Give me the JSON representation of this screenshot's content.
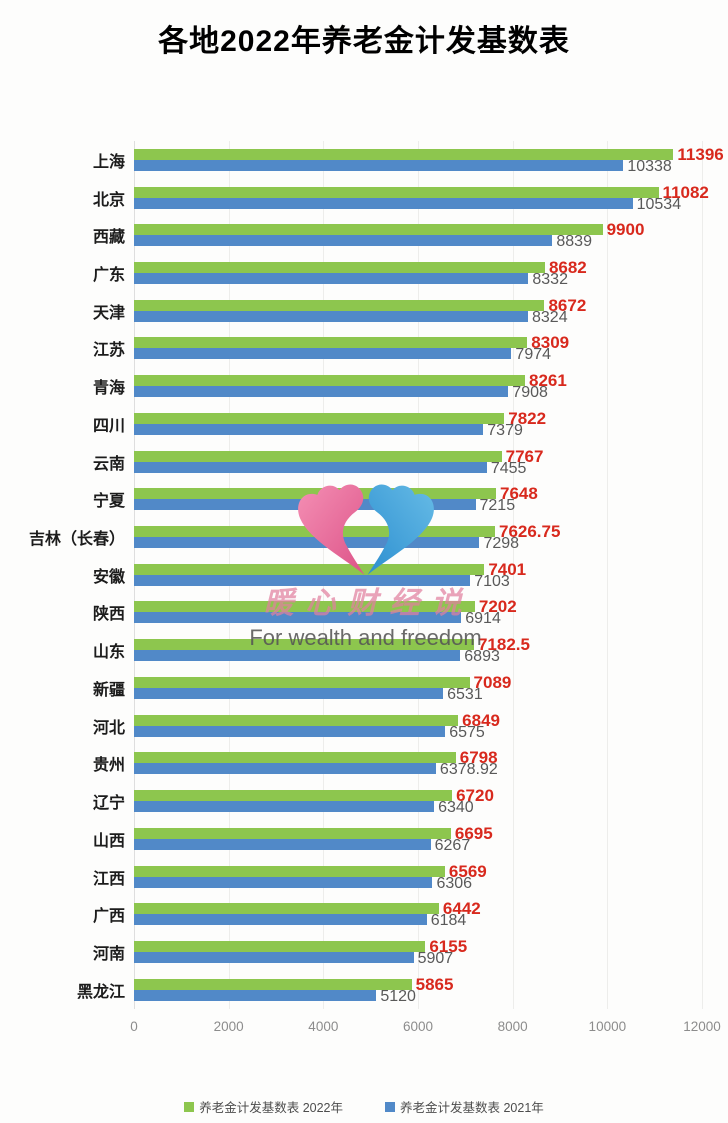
{
  "title": "各地2022年养老金计发基数表",
  "watermark": {
    "brand": "暖心财经说",
    "slogan": "For wealth and freedom",
    "logo_colors": {
      "left": "#E8669A",
      "right": "#3E9FD6"
    }
  },
  "colors": {
    "background": "#fdfdfc",
    "grid": "#ededeb",
    "axis_tick_text": "#8c8c8c",
    "category_text": "#1c1c1c",
    "value_2022_text": "#d8291d",
    "value_2021_text": "#595959"
  },
  "chart_data": {
    "type": "bar",
    "orientation": "horizontal",
    "title": "各地2022年养老金计发基数表",
    "xlabel": "",
    "ylabel": "",
    "xlim": [
      0,
      12000
    ],
    "x_ticks": [
      0,
      2000,
      4000,
      6000,
      8000,
      10000,
      12000
    ],
    "grid": true,
    "legend_position": "bottom",
    "categories": [
      "上海",
      "北京",
      "西藏",
      "广东",
      "天津",
      "江苏",
      "青海",
      "四川",
      "云南",
      "宁夏",
      "吉林（长春）",
      "安徽",
      "陕西",
      "山东",
      "新疆",
      "河北",
      "贵州",
      "辽宁",
      "山西",
      "江西",
      "广西",
      "河南",
      "黑龙江"
    ],
    "series": [
      {
        "name": "养老金计发基数表 2022年",
        "color": "#8dc64e",
        "label_color": "#d8291d",
        "values": [
          11396,
          11082,
          9900,
          8682,
          8672,
          8309,
          8261,
          7822,
          7767,
          7648,
          7626.75,
          7401,
          7202,
          7182.5,
          7089,
          6849,
          6798,
          6720,
          6695,
          6569,
          6442,
          6155,
          5865
        ]
      },
      {
        "name": "养老金计发基数表 2021年",
        "color": "#5189c8",
        "label_color": "#595959",
        "values": [
          10338,
          10534,
          8839,
          8332,
          8324,
          7974,
          7908,
          7379,
          7455,
          7215,
          7298,
          7103,
          6914,
          6893,
          6531,
          6575,
          6378.92,
          6340,
          6267,
          6306,
          6184,
          5907,
          5120
        ]
      }
    ]
  }
}
